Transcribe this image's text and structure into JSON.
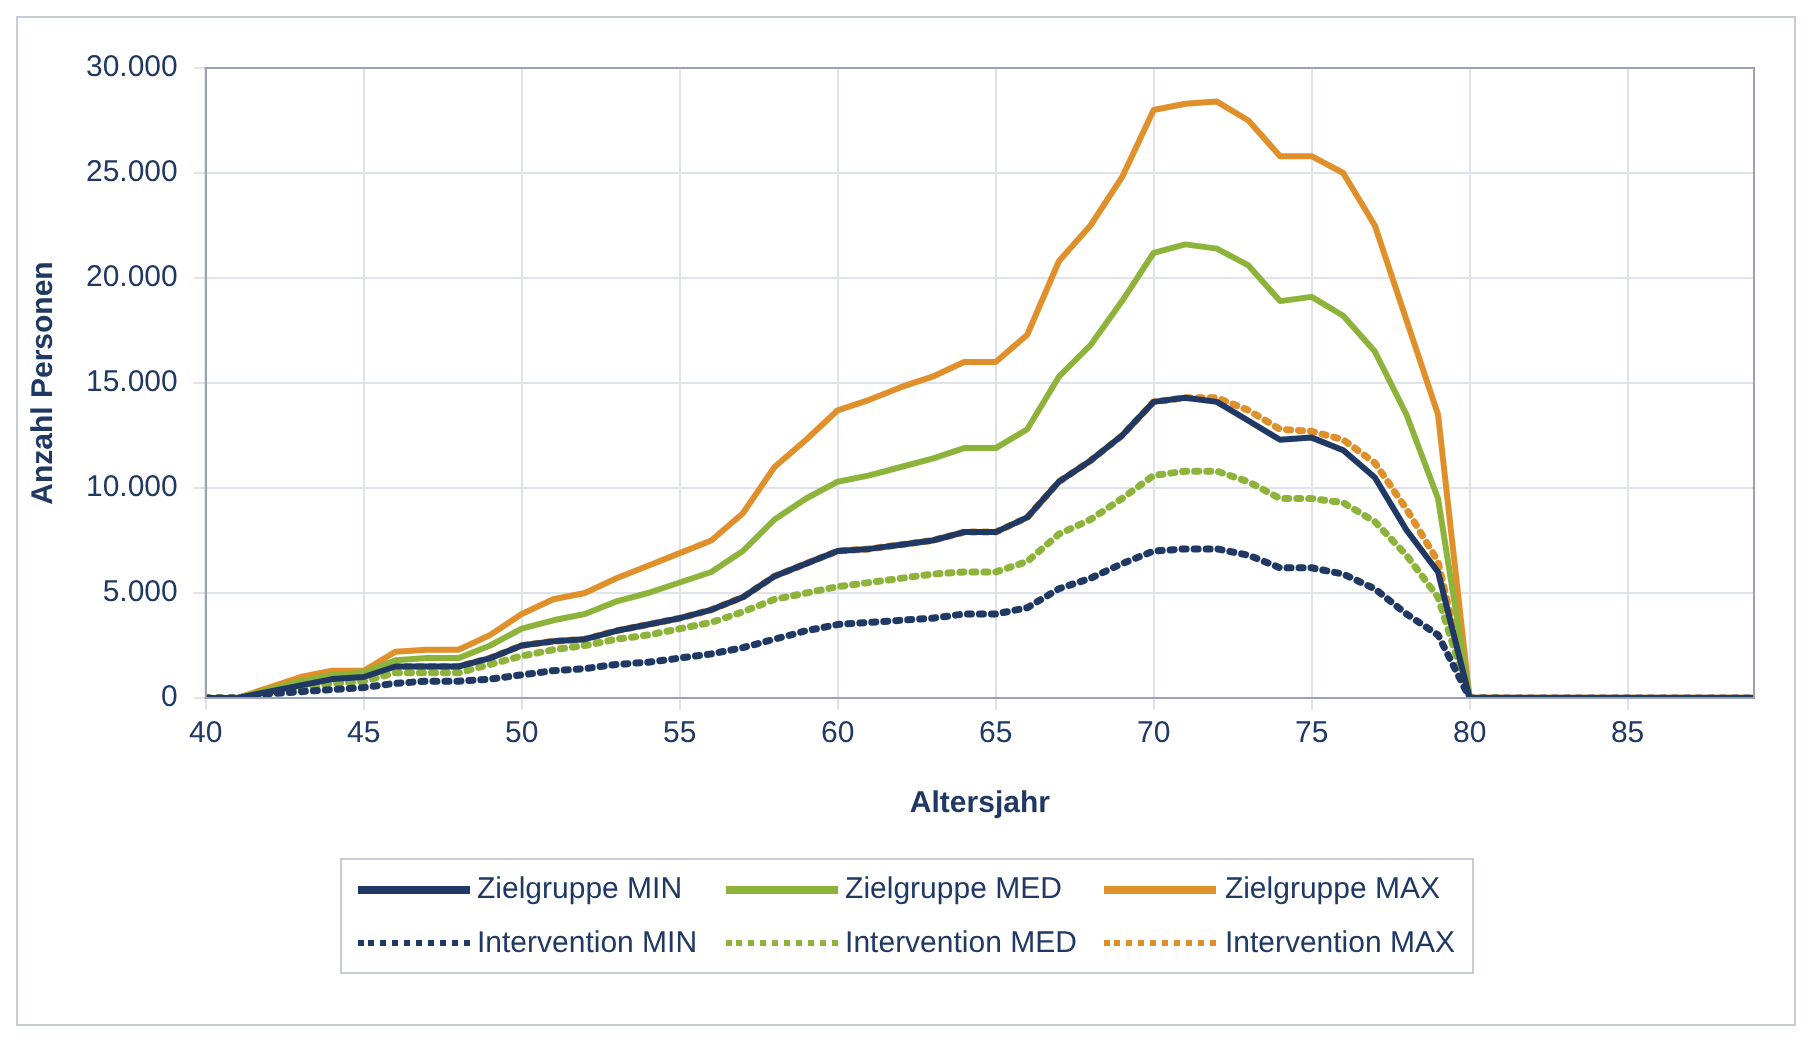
{
  "chart_data": {
    "type": "line",
    "xlabel": "Altersjahr",
    "ylabel": "Anzahl Personen",
    "x": [
      40,
      41,
      42,
      43,
      44,
      45,
      46,
      47,
      48,
      49,
      50,
      51,
      52,
      53,
      54,
      55,
      56,
      57,
      58,
      59,
      60,
      61,
      62,
      63,
      64,
      65,
      66,
      67,
      68,
      69,
      70,
      71,
      72,
      73,
      74,
      75,
      76,
      77,
      78,
      79,
      80,
      81,
      82,
      83,
      84,
      85,
      86,
      87,
      88,
      89
    ],
    "xlim": [
      40,
      89
    ],
    "xticks": [
      40,
      45,
      50,
      55,
      60,
      65,
      70,
      75,
      80,
      85
    ],
    "ylim": [
      0,
      30000
    ],
    "yticks": [
      {
        "value": 0,
        "label": "0"
      },
      {
        "value": 5000,
        "label": "5.000"
      },
      {
        "value": 10000,
        "label": "10.000"
      },
      {
        "value": 15000,
        "label": "15.000"
      },
      {
        "value": 20000,
        "label": "20.000"
      },
      {
        "value": 25000,
        "label": "25.000"
      },
      {
        "value": 30000,
        "label": "30.000"
      }
    ],
    "grid": true,
    "legend": "bottom",
    "series": [
      {
        "name": "Zielgruppe MIN",
        "color": "#1f3864",
        "line_style": "solid",
        "values": [
          0,
          0,
          300,
          600,
          900,
          1000,
          1500,
          1500,
          1500,
          1900,
          2500,
          2700,
          2800,
          3200,
          3500,
          3800,
          4200,
          4800,
          5800,
          6400,
          7000,
          7100,
          7300,
          7500,
          7900,
          7900,
          8600,
          10300,
          11300,
          12500,
          14100,
          14300,
          14100,
          13200,
          12300,
          12400,
          11800,
          10500,
          8000,
          6000,
          0,
          0,
          0,
          0,
          0,
          0,
          0,
          0,
          0,
          0
        ]
      },
      {
        "name": "Zielgruppe MED",
        "color": "#8db33a",
        "line_style": "solid",
        "values": [
          0,
          0,
          400,
          800,
          1100,
          1200,
          1800,
          1900,
          1900,
          2500,
          3300,
          3700,
          4000,
          4600,
          5000,
          5500,
          6000,
          7000,
          8500,
          9500,
          10300,
          10600,
          11000,
          11400,
          11900,
          11900,
          12800,
          15300,
          16800,
          18900,
          21200,
          21600,
          21400,
          20600,
          18900,
          19100,
          18200,
          16500,
          13500,
          9500,
          0,
          0,
          null,
          null,
          null,
          null,
          null,
          null,
          null,
          null
        ]
      },
      {
        "name": "Zielgruppe MAX",
        "color": "#e0902a",
        "line_style": "solid",
        "values": [
          0,
          0,
          500,
          1000,
          1300,
          1300,
          2200,
          2300,
          2300,
          3000,
          4000,
          4700,
          5000,
          5700,
          6300,
          6900,
          7500,
          8800,
          11000,
          12300,
          13700,
          14200,
          14800,
          15300,
          16000,
          16000,
          17300,
          20800,
          22500,
          24800,
          28000,
          28300,
          28400,
          27500,
          25800,
          25800,
          25000,
          22500,
          18000,
          13500,
          0,
          0,
          0,
          0,
          0,
          0,
          0,
          0,
          0,
          0
        ]
      },
      {
        "name": "Intervention MIN",
        "color": "#1f3864",
        "line_style": "dotted",
        "values": [
          0,
          0,
          200,
          300,
          400,
          500,
          700,
          800,
          800,
          900,
          1100,
          1300,
          1400,
          1600,
          1700,
          1900,
          2100,
          2400,
          2800,
          3200,
          3500,
          3600,
          3700,
          3800,
          4000,
          4000,
          4300,
          5200,
          5700,
          6400,
          7000,
          7100,
          7100,
          6800,
          6200,
          6200,
          5900,
          5200,
          4000,
          3000,
          0,
          0,
          0,
          0,
          0,
          0,
          0,
          0,
          0,
          0
        ]
      },
      {
        "name": "Intervention MED",
        "color": "#8db33a",
        "line_style": "dotted",
        "values": [
          0,
          0,
          200,
          500,
          700,
          800,
          1200,
          1200,
          1200,
          1600,
          2000,
          2300,
          2500,
          2800,
          3000,
          3300,
          3600,
          4100,
          4700,
          5000,
          5300,
          5500,
          5700,
          5900,
          6000,
          6000,
          6500,
          7800,
          8500,
          9500,
          10600,
          10800,
          10800,
          10300,
          9500,
          9500,
          9300,
          8400,
          6800,
          4800,
          0,
          0,
          null,
          null,
          null,
          null,
          null,
          null,
          null,
          null
        ]
      },
      {
        "name": "Intervention MAX",
        "color": "#e0902a",
        "line_style": "dotted",
        "values": [
          0,
          0,
          300,
          600,
          900,
          1000,
          1500,
          1500,
          1500,
          1900,
          2500,
          2700,
          2800,
          3200,
          3500,
          3800,
          4200,
          4800,
          5800,
          6400,
          7000,
          7100,
          7300,
          7500,
          7900,
          7900,
          8600,
          10300,
          11300,
          12500,
          14100,
          14300,
          14300,
          13700,
          12800,
          12700,
          12300,
          11200,
          9000,
          6500,
          0,
          0,
          0,
          0,
          0,
          0,
          0,
          0,
          0,
          0
        ]
      }
    ]
  }
}
